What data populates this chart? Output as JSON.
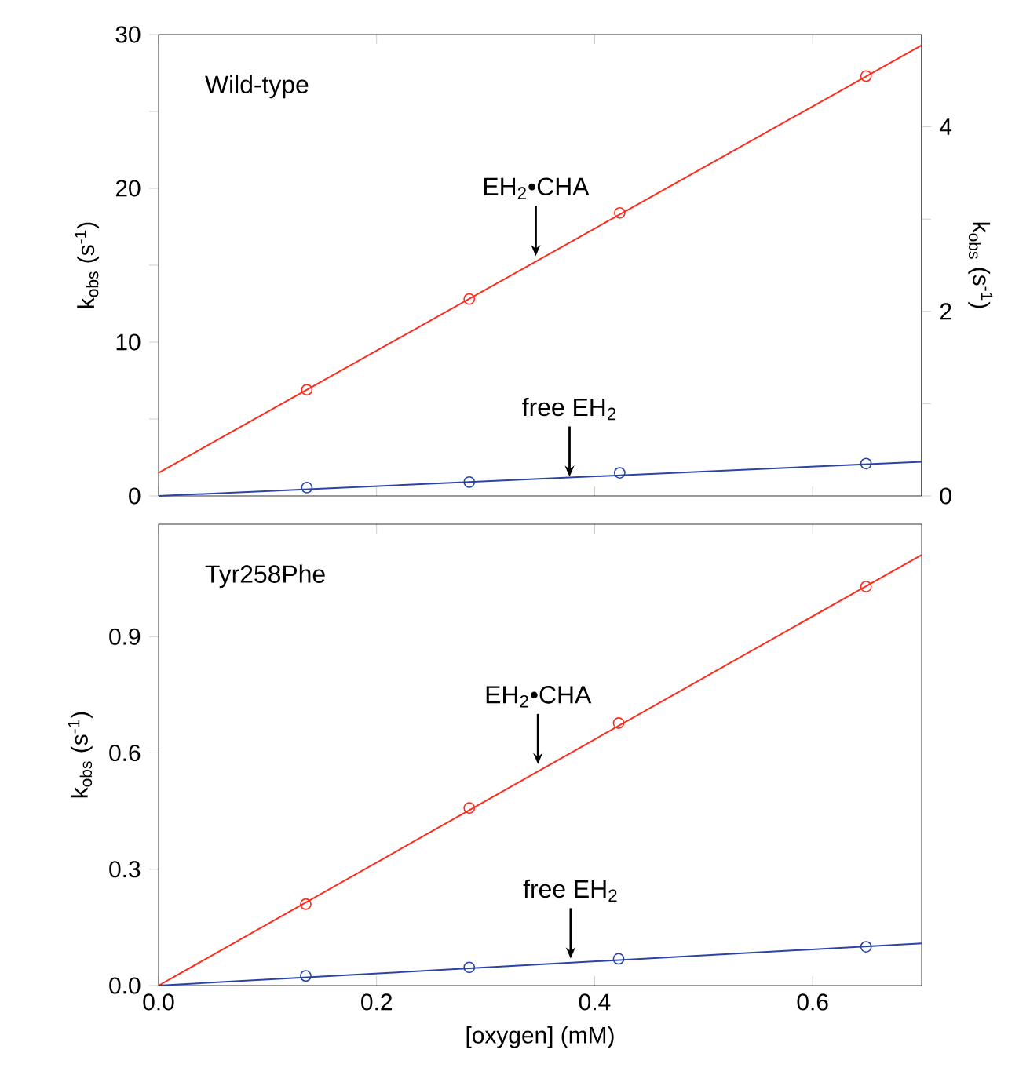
{
  "chart_data": [
    {
      "type": "scatter",
      "title": "Wild-type",
      "ylabel": "k$_{obs}$ (s$^{-1}$)",
      "y2label": "k$_{obs}$ (s$^{-1}$)",
      "line_style": "solid",
      "tick_labels": "y",
      "xlim": [
        0,
        0.7
      ],
      "ylim": [
        0,
        30
      ],
      "y2lim": [
        0,
        5
      ],
      "xticks": [
        0,
        0.2,
        0.4,
        0.6
      ],
      "yticks": [
        0,
        {
          "value": 5,
          "label": null
        },
        10,
        {
          "value": 15,
          "label": null
        },
        20,
        {
          "value": 25,
          "label": null
        },
        30
      ],
      "y2ticks": [
        0,
        {
          "value": 1,
          "label": null
        },
        2,
        {
          "value": 3,
          "label": null
        },
        4
      ],
      "series": [
        {
          "color": "#ff2a1a",
          "marker": "circle",
          "x": [
            0.136,
            0.285,
            0.423,
            0.649
          ],
          "values": [
            6.9,
            12.8,
            18.4,
            27.3
          ]
        },
        {
          "type": "line",
          "marker": "none",
          "color": "#ff2a1a",
          "x": [
            0,
            0.7
          ],
          "values": [
            1.5,
            29.3
          ]
        },
        {
          "color": "#2844a8",
          "marker": "circle",
          "axis": "y2",
          "x": [
            0.136,
            0.285,
            0.423,
            0.649
          ],
          "values": [
            0.09,
            0.15,
            0.25,
            0.35
          ]
        },
        {
          "type": "line",
          "marker": "none",
          "color": "#2844a8",
          "axis": "y2",
          "x": [
            0,
            0.7
          ],
          "values": [
            0,
            0.37
          ]
        }
      ],
      "annotations": [
        {
          "text": "EH$_{2}$•CHA",
          "x": 0.346,
          "y": 15.6
        },
        {
          "text": "free EH$_{2}$",
          "x": 0.377,
          "y": 1.25
        }
      ]
    },
    {
      "type": "scatter",
      "title": "Tyr258Phe",
      "xlabel": "[oxygen] (mM)",
      "ylabel": "k$_{obs}$ (s$^{-1}$)",
      "line_style": "solid",
      "xlim": [
        0,
        0.7
      ],
      "ylim": [
        0,
        1.19
      ],
      "xticks": [
        {
          "value": 0,
          "label": "0.0"
        },
        0.2,
        0.4,
        0.6
      ],
      "yticks": [
        {
          "value": 0,
          "label": "0.0"
        },
        0.3,
        0.6,
        0.9
      ],
      "series": [
        {
          "color": "#ff2a1a",
          "marker": "circle",
          "x": [
            0.135,
            0.285,
            0.422,
            0.649
          ],
          "values": [
            0.21,
            0.458,
            0.677,
            1.029
          ]
        },
        {
          "type": "line",
          "marker": "none",
          "color": "#ff2a1a",
          "x": [
            0,
            0.7
          ],
          "values": [
            0,
            1.111
          ]
        },
        {
          "color": "#2844a8",
          "marker": "circle",
          "x": [
            0.135,
            0.285,
            0.422,
            0.649
          ],
          "values": [
            0.025,
            0.047,
            0.069,
            0.1
          ]
        },
        {
          "type": "line",
          "marker": "none",
          "color": "#2844a8",
          "x": [
            0,
            0.7
          ],
          "values": [
            0,
            0.109
          ]
        }
      ],
      "annotations": [
        {
          "text": "EH$_{2}$•CHA",
          "x": 0.348,
          "y": 0.571
        },
        {
          "text": "free EH$_{2}$",
          "x": 0.378,
          "y": 0.07
        }
      ]
    }
  ]
}
